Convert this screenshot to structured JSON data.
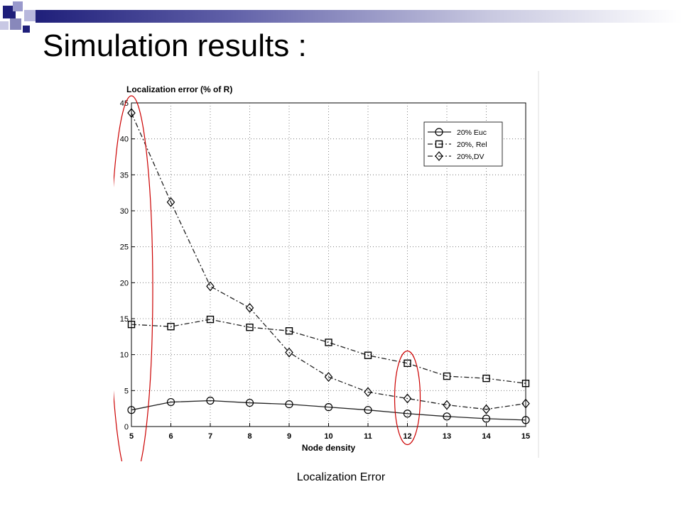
{
  "slide": {
    "title": "Simulation results :",
    "footer": "Localization Error",
    "accent_color": "#1f1f7a",
    "accent_light": "#9999cc",
    "highlight_color": "#cc0000"
  },
  "chart_data": {
    "type": "line",
    "title": "",
    "ylabel": "Localization error (% of R)",
    "xlabel": "Node density",
    "x": [
      5,
      6,
      7,
      8,
      9,
      10,
      11,
      12,
      13,
      14,
      15
    ],
    "xlim": [
      5,
      15
    ],
    "ylim": [
      0,
      45
    ],
    "xticks": [
      "5",
      "6",
      "7",
      "8",
      "9",
      "10",
      "11",
      "12",
      "13",
      "14",
      "15"
    ],
    "yticks": [
      "0",
      "5",
      "10",
      "15",
      "20",
      "25",
      "30",
      "35",
      "40",
      "45"
    ],
    "grid": true,
    "legend_position": "top-right",
    "series": [
      {
        "name": "20% Euc",
        "marker": "circle",
        "line": "solid",
        "values": [
          2.3,
          3.4,
          3.6,
          3.3,
          3.1,
          2.7,
          2.3,
          1.8,
          1.4,
          1.1,
          0.9
        ]
      },
      {
        "name": "20%, Rel",
        "marker": "square",
        "line": "dashdot",
        "values": [
          14.2,
          13.9,
          14.9,
          13.8,
          13.3,
          11.7,
          9.9,
          8.8,
          7.0,
          6.7,
          6.0
        ]
      },
      {
        "name": "20%,DV",
        "marker": "diamond",
        "line": "dashdot",
        "values": [
          43.6,
          31.2,
          19.5,
          16.5,
          10.3,
          6.9,
          4.8,
          3.9,
          3.0,
          2.4,
          3.2
        ]
      }
    ]
  }
}
